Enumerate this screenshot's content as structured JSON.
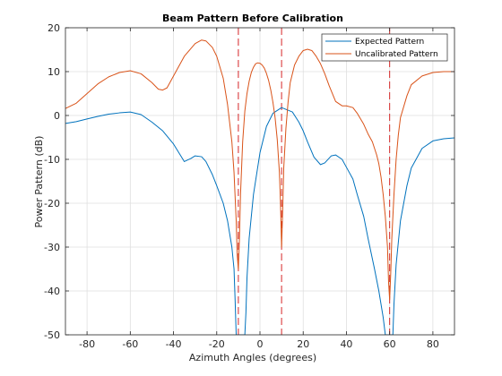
{
  "chart_data": {
    "type": "line",
    "title": "Beam Pattern Before Calibration",
    "xlabel": "Azimuth Angles (degrees)",
    "ylabel": "Power Pattern (dB)",
    "xlim": [
      -90,
      90
    ],
    "ylim": [
      -50,
      20
    ],
    "xticks": [
      -80,
      -60,
      -40,
      -20,
      0,
      20,
      40,
      60,
      80
    ],
    "yticks": [
      -50,
      -40,
      -30,
      -20,
      -10,
      0,
      10,
      20
    ],
    "grid": true,
    "legend_position": "top-right",
    "series": [
      {
        "name": "Expected Pattern",
        "color": "#0072BD",
        "x": [
          -90,
          -85,
          -80,
          -75,
          -70,
          -65,
          -60,
          -55,
          -50,
          -45,
          -40,
          -35,
          -32,
          -30,
          -27,
          -25,
          -22,
          -20,
          -17,
          -15,
          -13,
          -12,
          -11.5,
          -11,
          -10.5,
          -10,
          -9.5,
          -9,
          -8.5,
          -8,
          -7.5,
          -7,
          -6.5,
          -6,
          -5,
          -3,
          0,
          3,
          6,
          10,
          15,
          18,
          20,
          22,
          25,
          28,
          30,
          33,
          35,
          38,
          40,
          43,
          45,
          48,
          50,
          53,
          55,
          57,
          58,
          59,
          59.5,
          60,
          60.5,
          61,
          61.5,
          62,
          63,
          65,
          68,
          70,
          75,
          80,
          85,
          90
        ],
        "y": [
          -1.8,
          -1.4,
          -0.8,
          -0.2,
          0.3,
          0.6,
          0.8,
          0.2,
          -1.5,
          -3.5,
          -6.5,
          -10.5,
          -9.8,
          -9.2,
          -9.4,
          -10.5,
          -13.5,
          -16,
          -20,
          -24,
          -30,
          -35,
          -42,
          -50,
          -50,
          -50,
          -50,
          -50,
          -50,
          -50,
          -50,
          -50,
          -45,
          -37,
          -28,
          -18,
          -8.5,
          -2.5,
          0.5,
          1.8,
          0.8,
          -1.5,
          -3.5,
          -6,
          -9.5,
          -11.2,
          -10.8,
          -9.2,
          -9.0,
          -10,
          -11.8,
          -14.5,
          -18,
          -23,
          -28,
          -35,
          -40,
          -46,
          -50,
          -50,
          -50,
          -50,
          -50,
          -50,
          -50,
          -43,
          -34,
          -24,
          -16,
          -12,
          -7.5,
          -5.8,
          -5.3,
          -5.1
        ]
      },
      {
        "name": "Uncalibrated Pattern",
        "color": "#D95319",
        "x": [
          -90,
          -85,
          -80,
          -75,
          -70,
          -65,
          -60,
          -55,
          -50,
          -47,
          -45,
          -43,
          -40,
          -35,
          -30,
          -27,
          -25,
          -22,
          -20,
          -17,
          -15,
          -13,
          -12,
          -11,
          -10.5,
          -10,
          -9.5,
          -9,
          -8,
          -7,
          -6,
          -5,
          -4,
          -3,
          -2,
          -1,
          0,
          1,
          2,
          3,
          4,
          5,
          6,
          7,
          8,
          9,
          9.5,
          10,
          10.5,
          11,
          12,
          13,
          14,
          16,
          18,
          20,
          22,
          24,
          26,
          28,
          30,
          32,
          35,
          38,
          40,
          43,
          45,
          48,
          50,
          52,
          54,
          55,
          56,
          57,
          58,
          59,
          59.5,
          60,
          60.5,
          61,
          62,
          63,
          64,
          65,
          68,
          70,
          75,
          80,
          85,
          90
        ],
        "y": [
          1.6,
          2.8,
          5.0,
          7.2,
          8.8,
          9.8,
          10.2,
          9.5,
          7.5,
          6.0,
          5.8,
          6.3,
          9.0,
          13.5,
          16.4,
          17.2,
          17.0,
          15.5,
          13.5,
          8.5,
          2.5,
          -6.0,
          -13.0,
          -24.0,
          -32.0,
          -35.0,
          -28.0,
          -18.0,
          -6.0,
          1.0,
          5.0,
          7.8,
          9.8,
          11.0,
          11.8,
          12.0,
          11.9,
          11.5,
          10.8,
          9.6,
          8.0,
          5.8,
          3.0,
          -0.5,
          -5.5,
          -13.0,
          -20.0,
          -30.0,
          -22.0,
          -12.0,
          -3.0,
          3.0,
          7.5,
          11.5,
          13.5,
          14.8,
          15.1,
          14.8,
          13.5,
          11.8,
          9.5,
          6.8,
          3.2,
          2.2,
          2.2,
          1.8,
          0.5,
          -2.0,
          -4.2,
          -6.0,
          -9.0,
          -11.0,
          -14.0,
          -18.0,
          -23.0,
          -30.0,
          -38.0,
          -42.0,
          -36.0,
          -28.0,
          -18.0,
          -10.0,
          -4.5,
          -0.5,
          4.5,
          7.0,
          9.0,
          9.8,
          10.0,
          10.0
        ]
      }
    ],
    "annotations": {
      "vertical_lines": [
        -10,
        10,
        60
      ],
      "line_color": "#d62728",
      "line_style": "dashed"
    }
  }
}
